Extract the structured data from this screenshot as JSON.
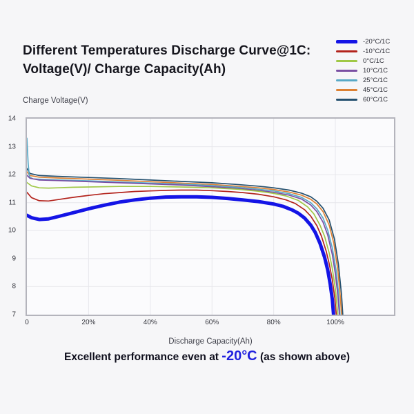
{
  "title": {
    "line1": "Different Temperatures Discharge Curve@1C:",
    "line2": "Voltage(V)/ Charge Capacity(Ah)"
  },
  "chart": {
    "y_axis_title": "Charge Voltage(V)",
    "x_axis_title": "Discharge Capacity(Ah)"
  },
  "footnote": {
    "prefix": "Excellent performance even at ",
    "highlight": "-20°C",
    "suffix": " (as shown above)",
    "highlight_color": "#2121de"
  },
  "colors": {
    "plot_background": "#fbfbfd",
    "plot_border": "#b4b4bc",
    "gridline": "#e7e7ec"
  },
  "chart_data": {
    "type": "line",
    "title": "Different Temperatures Discharge Curve@1C: Voltage(V)/ Charge Capacity(Ah)",
    "xlabel": "Discharge Capacity(Ah)",
    "ylabel": "Charge Voltage(V)",
    "x_max_percent": 119,
    "ylim": [
      7,
      14
    ],
    "grid": true,
    "legend_position": "top-right",
    "x_ticks": [
      {
        "label": "0",
        "value": 0
      },
      {
        "label": "20%",
        "value": 20
      },
      {
        "label": "40%",
        "value": 40
      },
      {
        "label": "60%",
        "value": 60
      },
      {
        "label": "80%",
        "value": 80
      },
      {
        "label": "100%",
        "value": 100
      }
    ],
    "y_ticks": [
      7,
      8,
      9,
      10,
      11,
      12,
      13,
      14
    ],
    "series": [
      {
        "name": "-20°C/1C",
        "color": "#1414e6",
        "width": 5,
        "thick": true,
        "points": [
          [
            0,
            10.55
          ],
          [
            1.5,
            10.46
          ],
          [
            4,
            10.4
          ],
          [
            7,
            10.42
          ],
          [
            10,
            10.5
          ],
          [
            15,
            10.64
          ],
          [
            20,
            10.78
          ],
          [
            25,
            10.91
          ],
          [
            30,
            11.02
          ],
          [
            35,
            11.1
          ],
          [
            40,
            11.16
          ],
          [
            45,
            11.2
          ],
          [
            50,
            11.21
          ],
          [
            55,
            11.21
          ],
          [
            60,
            11.19
          ],
          [
            65,
            11.15
          ],
          [
            70,
            11.1
          ],
          [
            75,
            11.04
          ],
          [
            80,
            10.95
          ],
          [
            83,
            10.87
          ],
          [
            86,
            10.74
          ],
          [
            88,
            10.62
          ],
          [
            90,
            10.45
          ],
          [
            92,
            10.2
          ],
          [
            93.5,
            9.93
          ],
          [
            95,
            9.55
          ],
          [
            96.5,
            9.05
          ],
          [
            97.5,
            8.6
          ],
          [
            98.3,
            8.1
          ],
          [
            99,
            7.55
          ],
          [
            99.4,
            7.0
          ]
        ]
      },
      {
        "name": "-10°C/1C",
        "color": "#b3231c",
        "width": 1.7,
        "thick": false,
        "points": [
          [
            0,
            11.37
          ],
          [
            1.5,
            11.18
          ],
          [
            4,
            11.07
          ],
          [
            7,
            11.06
          ],
          [
            10,
            11.11
          ],
          [
            15,
            11.19
          ],
          [
            20,
            11.26
          ],
          [
            25,
            11.32
          ],
          [
            30,
            11.36
          ],
          [
            35,
            11.4
          ],
          [
            40,
            11.42
          ],
          [
            45,
            11.44
          ],
          [
            50,
            11.45
          ],
          [
            55,
            11.45
          ],
          [
            60,
            11.43
          ],
          [
            65,
            11.4
          ],
          [
            70,
            11.36
          ],
          [
            75,
            11.3
          ],
          [
            80,
            11.21
          ],
          [
            84,
            11.1
          ],
          [
            87,
            10.97
          ],
          [
            90,
            10.75
          ],
          [
            92,
            10.52
          ],
          [
            94,
            10.18
          ],
          [
            95.5,
            9.8
          ],
          [
            97,
            9.28
          ],
          [
            98,
            8.82
          ],
          [
            99,
            8.25
          ],
          [
            99.8,
            7.6
          ],
          [
            100.3,
            7.0
          ]
        ]
      },
      {
        "name": "0°C/1C",
        "color": "#a0c846",
        "width": 1.7,
        "thick": false,
        "points": [
          [
            0,
            11.72
          ],
          [
            1.5,
            11.6
          ],
          [
            4,
            11.53
          ],
          [
            7,
            11.52
          ],
          [
            10,
            11.53
          ],
          [
            15,
            11.55
          ],
          [
            20,
            11.56
          ],
          [
            30,
            11.58
          ],
          [
            40,
            11.58
          ],
          [
            50,
            11.56
          ],
          [
            60,
            11.53
          ],
          [
            68,
            11.48
          ],
          [
            75,
            11.41
          ],
          [
            80,
            11.33
          ],
          [
            84,
            11.24
          ],
          [
            88,
            11.08
          ],
          [
            91,
            10.85
          ],
          [
            93,
            10.6
          ],
          [
            95,
            10.2
          ],
          [
            96.5,
            9.8
          ],
          [
            98,
            9.2
          ],
          [
            99,
            8.65
          ],
          [
            100,
            7.9
          ],
          [
            100.8,
            7.0
          ]
        ]
      },
      {
        "name": "10°C/1C",
        "color": "#7a4fa3",
        "width": 1.7,
        "thick": false,
        "points": [
          [
            0,
            11.98
          ],
          [
            1,
            11.87
          ],
          [
            4,
            11.81
          ],
          [
            10,
            11.79
          ],
          [
            20,
            11.75
          ],
          [
            30,
            11.71
          ],
          [
            40,
            11.67
          ],
          [
            50,
            11.63
          ],
          [
            60,
            11.57
          ],
          [
            68,
            11.51
          ],
          [
            75,
            11.44
          ],
          [
            80,
            11.37
          ],
          [
            85,
            11.27
          ],
          [
            89,
            11.13
          ],
          [
            92,
            10.92
          ],
          [
            94,
            10.68
          ],
          [
            96,
            10.3
          ],
          [
            97.5,
            9.85
          ],
          [
            99,
            9.15
          ],
          [
            100,
            8.45
          ],
          [
            100.8,
            7.7
          ],
          [
            101.3,
            7.0
          ]
        ]
      },
      {
        "name": "25°C/1C",
        "color": "#58a9c6",
        "width": 1.7,
        "thick": false,
        "points": [
          [
            0,
            13.3
          ],
          [
            0.4,
            12.4
          ],
          [
            0.8,
            11.92
          ],
          [
            2,
            11.85
          ],
          [
            5,
            11.83
          ],
          [
            10,
            11.81
          ],
          [
            20,
            11.78
          ],
          [
            30,
            11.74
          ],
          [
            40,
            11.7
          ],
          [
            50,
            11.66
          ],
          [
            60,
            11.61
          ],
          [
            68,
            11.55
          ],
          [
            75,
            11.48
          ],
          [
            80,
            11.42
          ],
          [
            85,
            11.32
          ],
          [
            89,
            11.19
          ],
          [
            92,
            11.0
          ],
          [
            94,
            10.78
          ],
          [
            96,
            10.45
          ],
          [
            97.5,
            10.02
          ],
          [
            99,
            9.38
          ],
          [
            100.2,
            8.6
          ],
          [
            101,
            7.8
          ],
          [
            101.5,
            7.0
          ]
        ]
      },
      {
        "name": "45°C/1C",
        "color": "#dd8133",
        "width": 1.7,
        "thick": false,
        "points": [
          [
            0,
            12.1
          ],
          [
            1,
            11.97
          ],
          [
            4,
            11.91
          ],
          [
            10,
            11.88
          ],
          [
            20,
            11.84
          ],
          [
            30,
            11.8
          ],
          [
            40,
            11.75
          ],
          [
            50,
            11.7
          ],
          [
            60,
            11.65
          ],
          [
            68,
            11.59
          ],
          [
            75,
            11.53
          ],
          [
            80,
            11.47
          ],
          [
            85,
            11.38
          ],
          [
            89,
            11.27
          ],
          [
            92,
            11.12
          ],
          [
            94,
            10.95
          ],
          [
            96,
            10.68
          ],
          [
            98,
            10.2
          ],
          [
            99.5,
            9.55
          ],
          [
            100.8,
            8.6
          ],
          [
            101.6,
            7.65
          ],
          [
            102,
            7.0
          ]
        ]
      },
      {
        "name": "60°C/1C",
        "color": "#24506f",
        "width": 1.7,
        "thick": false,
        "points": [
          [
            0,
            12.22
          ],
          [
            1,
            12.04
          ],
          [
            4,
            11.97
          ],
          [
            10,
            11.94
          ],
          [
            20,
            11.9
          ],
          [
            30,
            11.86
          ],
          [
            40,
            11.81
          ],
          [
            50,
            11.76
          ],
          [
            60,
            11.71
          ],
          [
            68,
            11.65
          ],
          [
            75,
            11.59
          ],
          [
            80,
            11.53
          ],
          [
            85,
            11.45
          ],
          [
            89,
            11.34
          ],
          [
            92,
            11.21
          ],
          [
            94,
            11.05
          ],
          [
            96,
            10.8
          ],
          [
            98,
            10.38
          ],
          [
            99.7,
            9.7
          ],
          [
            101,
            8.8
          ],
          [
            102,
            7.7
          ],
          [
            102.4,
            7.0
          ]
        ]
      }
    ]
  }
}
